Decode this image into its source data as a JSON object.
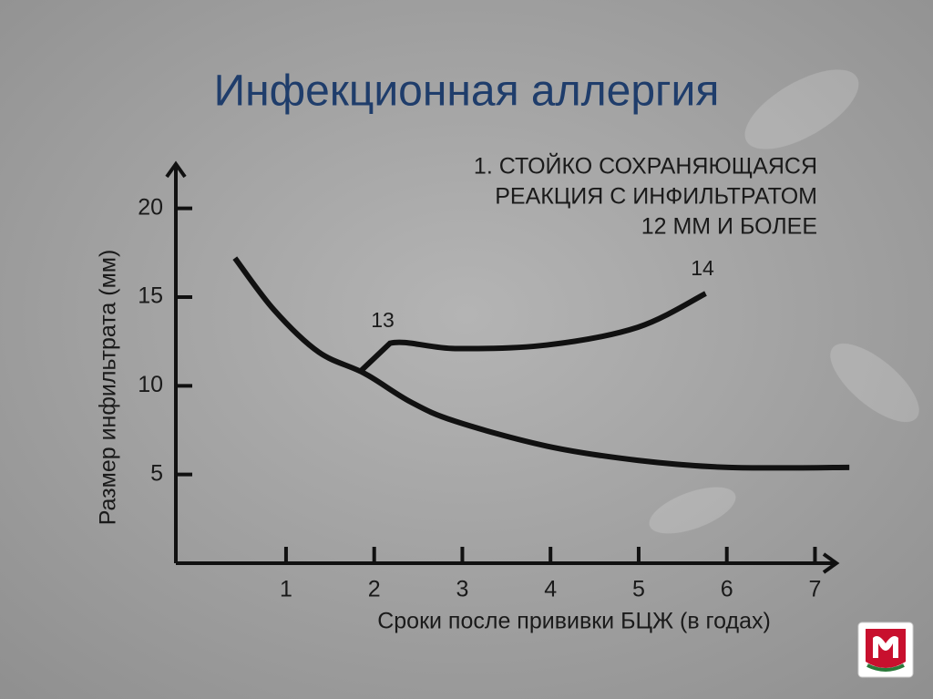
{
  "chart_data": {
    "type": "line",
    "title": "Инфекционная аллергия",
    "annotation": [
      "1. СТОЙКО СОХРАНЯЮЩАЯСЯ",
      "РЕАКЦИЯ С ИНФИЛЬТРАТОМ",
      "12 ММ И БОЛЕЕ"
    ],
    "curve_labels": [
      "13",
      "14"
    ],
    "xlabel": "Сроки после прививки БЦЖ (в годах)",
    "ylabel": "Размер инфильтрата (мм)",
    "xlim": [
      -0.25,
      7.45
    ],
    "ylim": [
      0,
      22.5
    ],
    "xticks": [
      1,
      2,
      3,
      4,
      5,
      6,
      7
    ],
    "yticks": [
      5,
      10,
      15,
      20
    ],
    "series": [
      {
        "color": "#111111",
        "x": [
          0.42,
          0.86,
          1.37,
          1.89,
          2.41,
          2.92,
          3.96,
          4.99,
          6.02,
          7.39
        ],
        "values": [
          17.2,
          14.3,
          11.9,
          10.7,
          9.1,
          8.0,
          6.6,
          5.8,
          5.4,
          5.4
        ]
      },
      {
        "color": "#111111",
        "x": [
          1.84,
          2.18,
          2.92,
          3.96,
          4.99,
          5.76
        ],
        "values": [
          10.8,
          12.4,
          12.1,
          12.3,
          13.3,
          15.2
        ]
      }
    ]
  }
}
